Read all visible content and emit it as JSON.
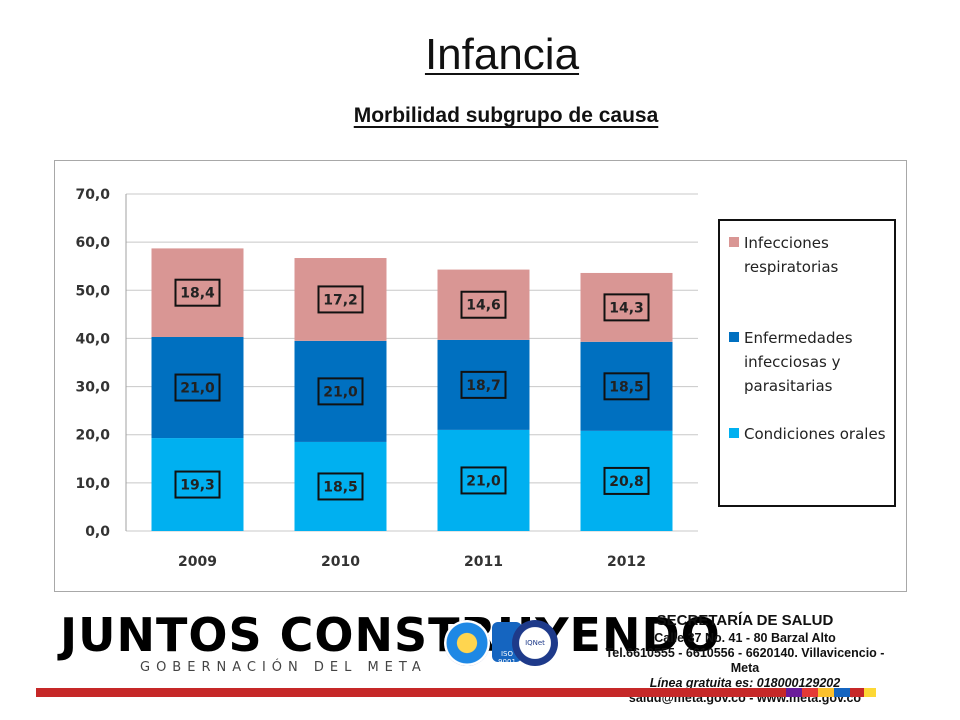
{
  "slide": {
    "title": "Infancia",
    "subtitle": "Morbilidad subgrupo de causa"
  },
  "chart_data": {
    "type": "bar",
    "stacked": true,
    "categories": [
      "2009",
      "2010",
      "2011",
      "2012"
    ],
    "series": [
      {
        "name": "Condiciones orales",
        "color": "#00b0f0",
        "values": [
          19.3,
          18.5,
          21.0,
          20.8
        ],
        "labels": [
          "19,3",
          "18,5",
          "21,0",
          "20,8"
        ]
      },
      {
        "name": "Enfermedades infecciosas y parasitarias",
        "color": "#0070c0",
        "values": [
          21.0,
          21.0,
          18.7,
          18.5
        ],
        "labels": [
          "21,0",
          "21,0",
          "18,7",
          "18,5"
        ]
      },
      {
        "name": "Infecciones respiratorias",
        "color": "#d99694",
        "values": [
          18.4,
          17.2,
          14.6,
          14.3
        ],
        "labels": [
          "18,4",
          "17,2",
          "14,6",
          "14,3"
        ]
      }
    ],
    "ylim": [
      0,
      70
    ],
    "yticks": [
      "0,0",
      "10,0",
      "20,0",
      "30,0",
      "40,0",
      "50,0",
      "60,0",
      "70,0"
    ],
    "grid": true,
    "legend_position": "right",
    "legend_labels": [
      [
        "Infecciones",
        "respiratorias"
      ],
      [
        "Enfermedades",
        "infecciosas y",
        "parasitarias"
      ],
      [
        "Condiciones orales"
      ]
    ]
  },
  "footer": {
    "logo_text": "JUNTOS CONSTRUYENDO",
    "logo_subtitle": "GOBERNACIÓN DEL META",
    "seal_label": "ISO 9001",
    "seal_label_2": "IQNet",
    "contact_title": "SECRETARÍA DE SALUD",
    "address": "Calle 37 No. 41 - 80 Barzal Alto",
    "phones": "Tel.6610555 - 6610556 - 6620140. Villavicencio - Meta",
    "free_line": "Línea gratuita es: 018000129202",
    "email_web": "salud@meta.gov.co - www.meta.gov.co",
    "color_bar": [
      "#c62828",
      "#c62828",
      "#c62828",
      "#c62828",
      "#c62828",
      "#c62828",
      "#6a1b9a",
      "#e53935",
      "#fbc02d",
      "#1565c0",
      "#c62828",
      "#fdd835"
    ]
  }
}
